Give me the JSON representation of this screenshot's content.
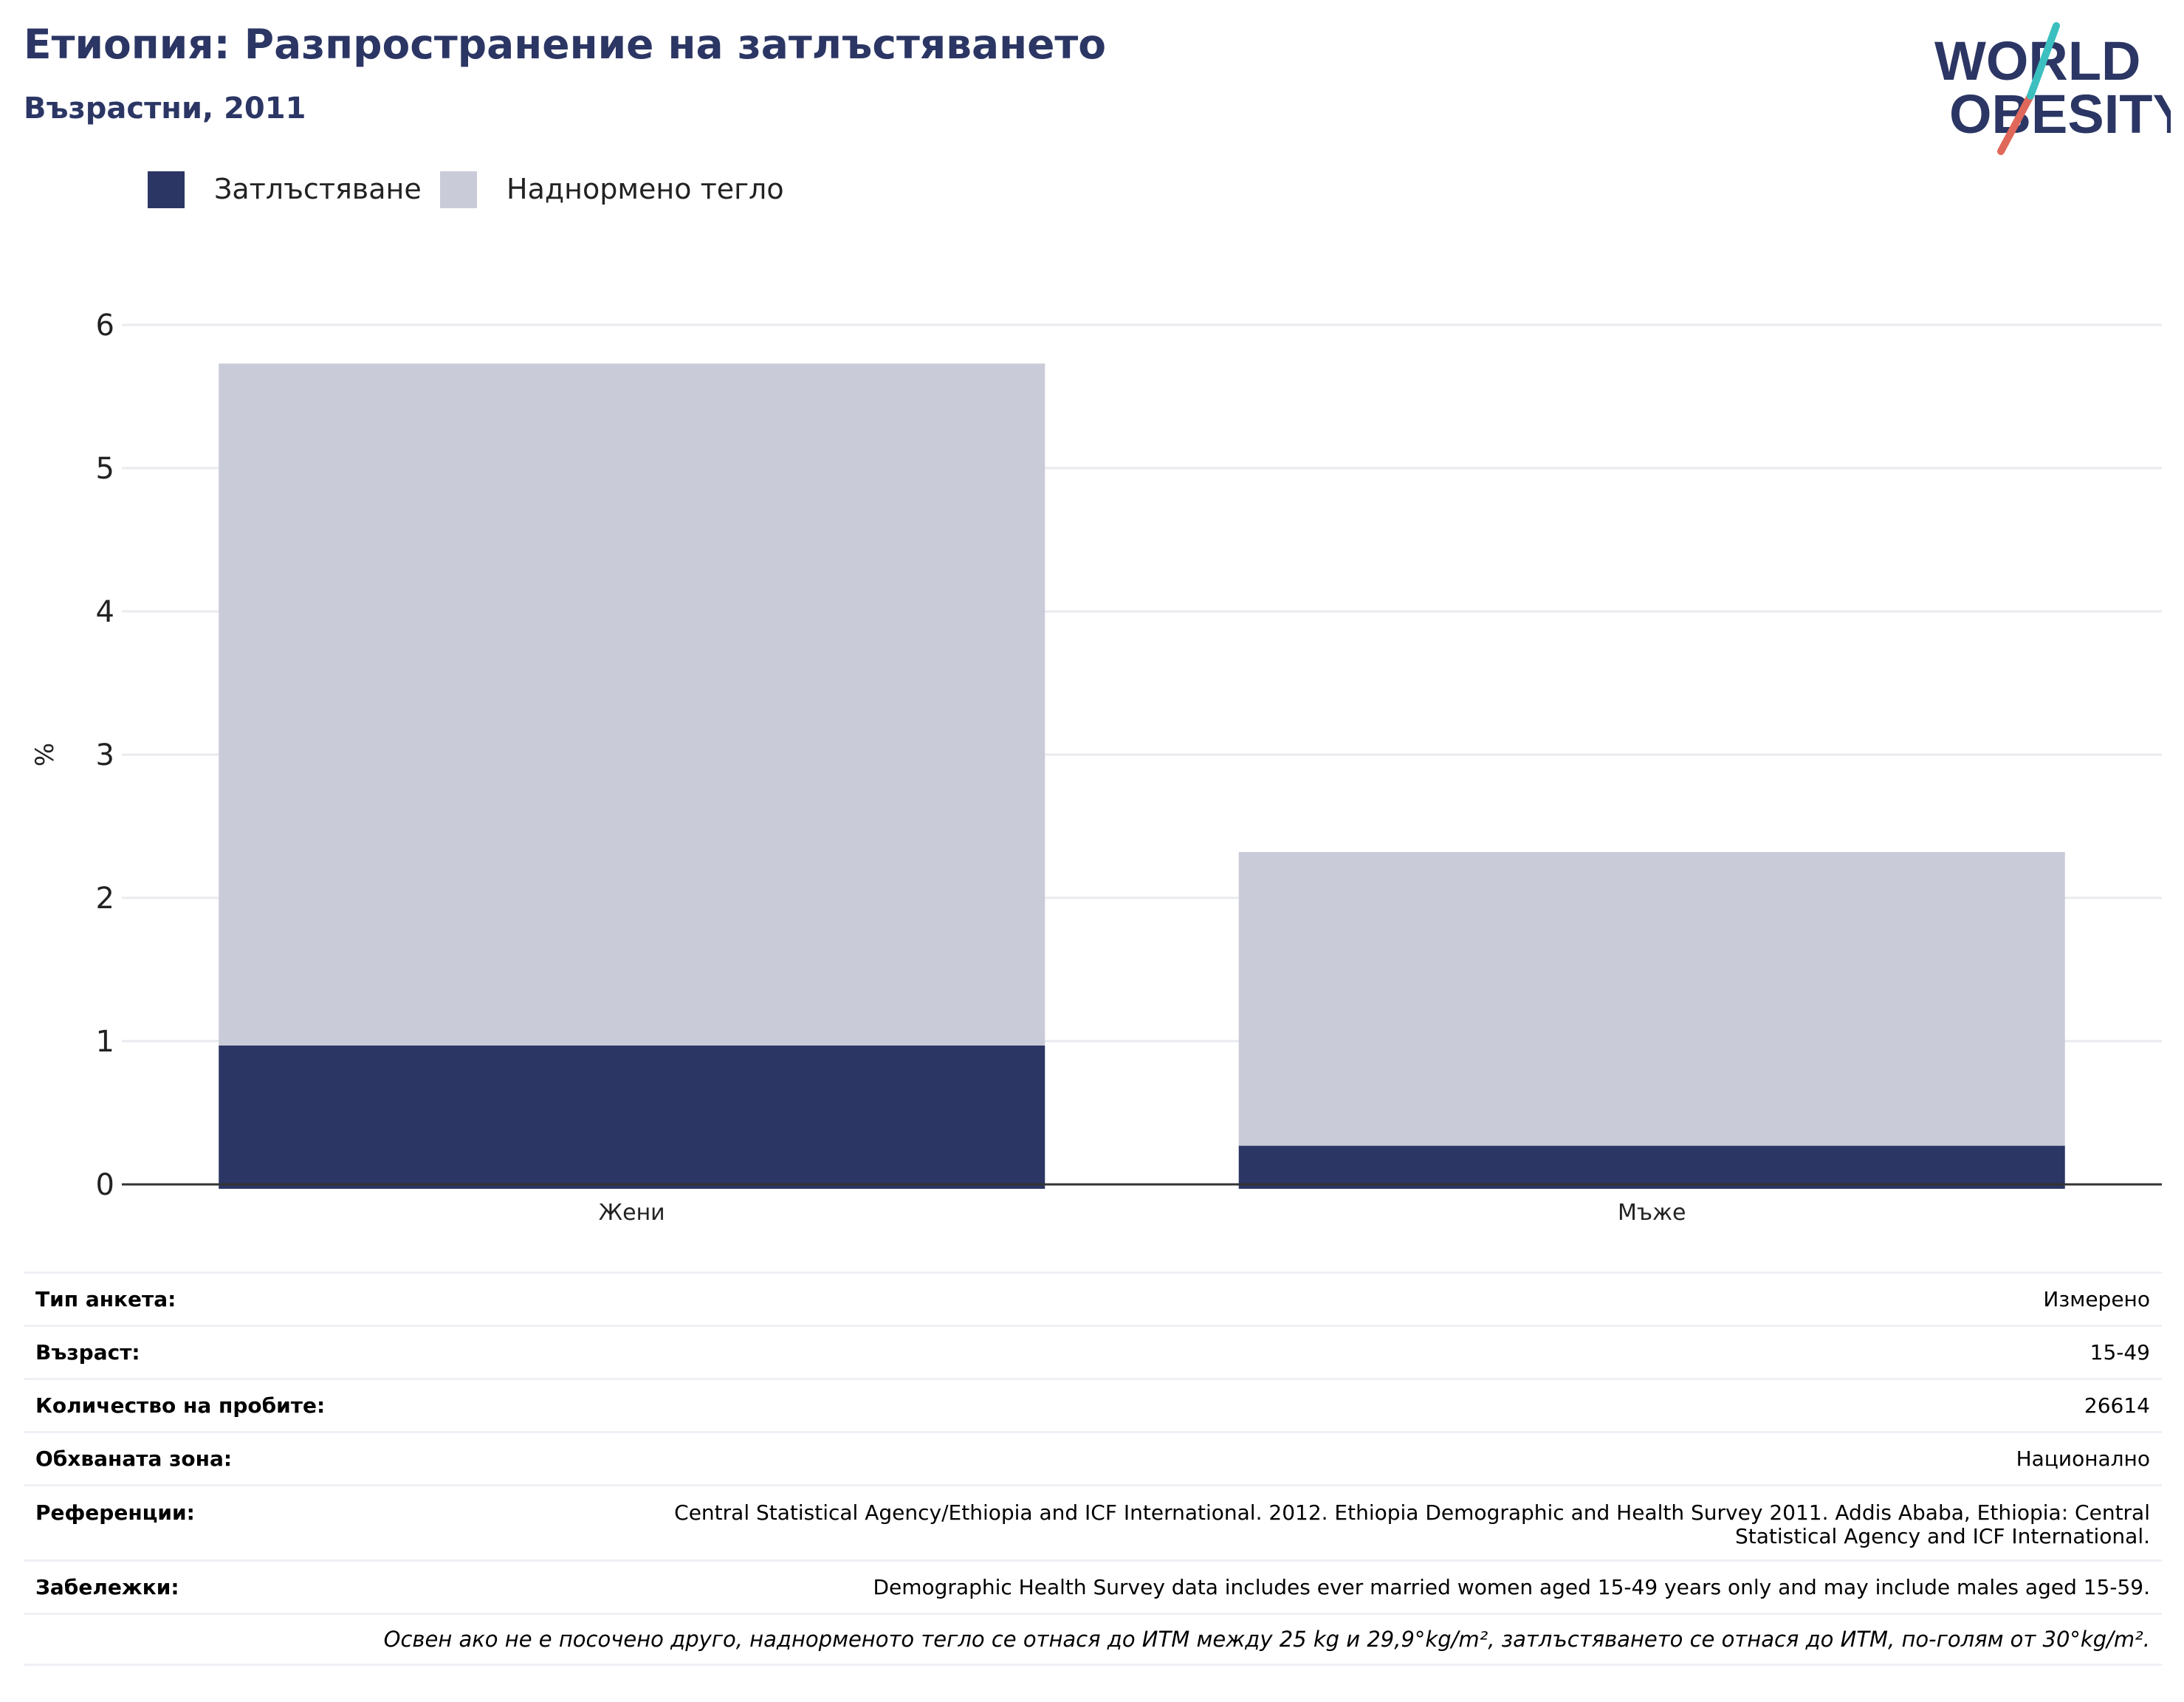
{
  "header": {
    "title": "Етиопия: Разпространение на затлъстяването",
    "subtitle": "Възрастни, 2011"
  },
  "logo": {
    "text_line1": "WORLD",
    "text_line2": "OBESITY",
    "colors": {
      "text": "#2b3664",
      "slash_teal": "#3bbfbf",
      "slash_coral": "#e0685a"
    }
  },
  "colors": {
    "obesity": "#2b3664",
    "overweight": "#c9ccd8",
    "title": "#2b3664",
    "grid": "#e9ebef",
    "axis": "#333333"
  },
  "chart_data": {
    "type": "bar",
    "stacked": true,
    "categories": [
      "Жени",
      "Мъже"
    ],
    "series": [
      {
        "name": "Затлъстяване",
        "values": [
          0.97,
          0.27
        ]
      },
      {
        "name": "Наднормено тегло",
        "values": [
          4.76,
          2.05
        ]
      }
    ],
    "title": "Етиопия: Разпространение на затлъстяването",
    "subtitle": "Възрастни, 2011",
    "xlabel": "",
    "ylabel": "%",
    "ylim": [
      0,
      6
    ],
    "yticks": [
      "0",
      "1",
      "2",
      "3",
      "4",
      "5",
      "6"
    ],
    "grid": true,
    "legend_position": "top-left"
  },
  "meta": {
    "rows": [
      {
        "key": "Тип анкета:",
        "value": "Измерено"
      },
      {
        "key": "Възраст:",
        "value": "15-49"
      },
      {
        "key": "Количество на пробите:",
        "value": "26614"
      },
      {
        "key": "Обхваната зона:",
        "value": "Национално"
      },
      {
        "key": "Референции:",
        "value": "Central Statistical Agency/Ethiopia and ICF International. 2012. Ethiopia Demographic and Health Survey 2011. Addis Ababa, Ethiopia: Central Statistical Agency and ICF International."
      },
      {
        "key": "Забележки:",
        "value": "Demographic Health Survey data includes ever married women aged 15-49 years only and may include males aged 15-59."
      }
    ],
    "footnote": "Освен ако не е посочено друго, наднорменото тегло се отнася до ИТМ между 25 kg и 29,9°kg/m², затлъстяването се отнася до ИТМ, по-голям от 30°kg/m²."
  }
}
